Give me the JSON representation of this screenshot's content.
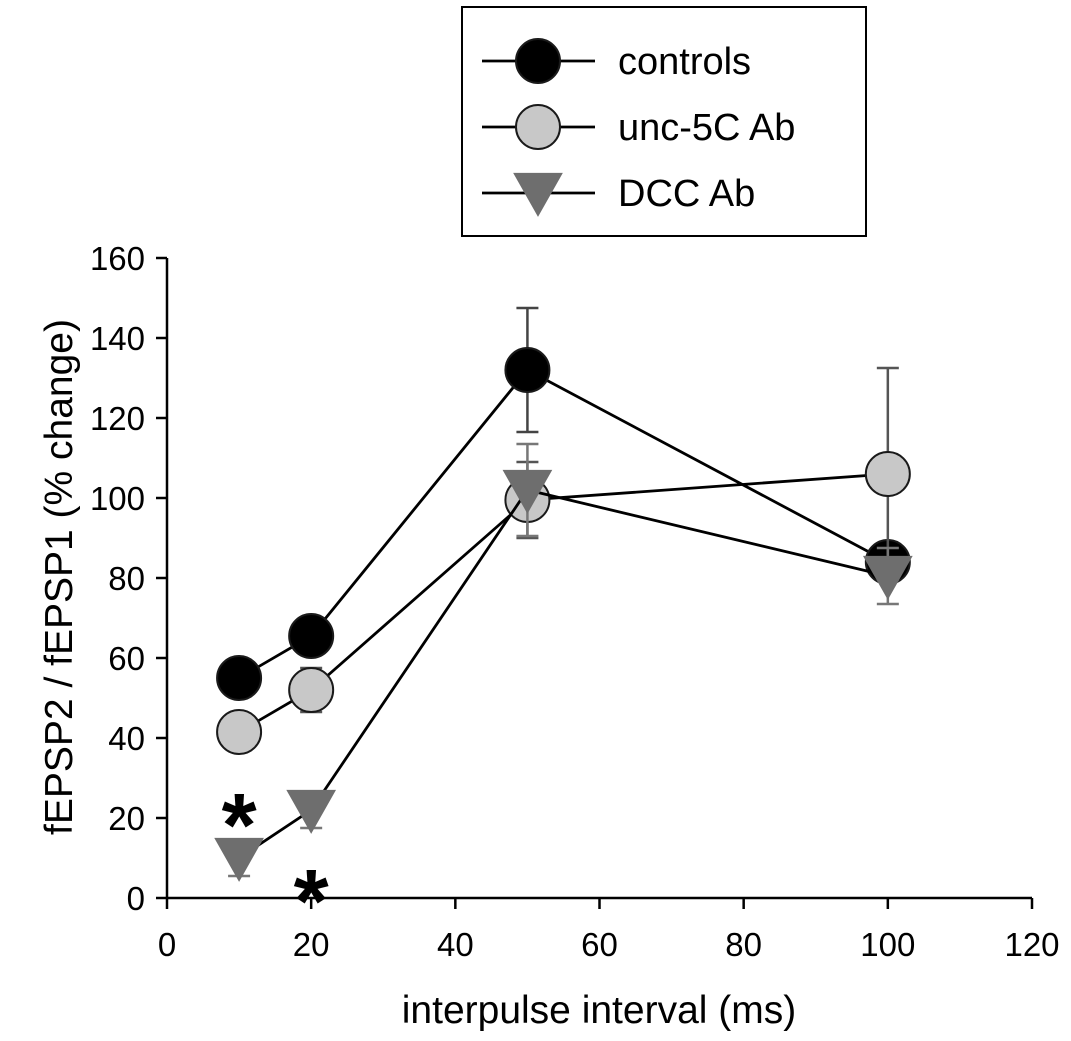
{
  "chart_data": {
    "type": "line",
    "title": "",
    "xlabel": "interpulse interval (ms)",
    "ylabel": "fEPSP2 / fEPSP1 (% change)",
    "xlim": [
      0,
      120
    ],
    "ylim": [
      0,
      160
    ],
    "xticks": [
      "0",
      "20",
      "40",
      "60",
      "80",
      "100",
      "120"
    ],
    "yticks": [
      "0",
      "20",
      "40",
      "60",
      "80",
      "100",
      "120",
      "140",
      "160"
    ],
    "grid": false,
    "legend_position": "top",
    "series": [
      {
        "name": "controls",
        "marker": "circle",
        "color": "#000000",
        "x": [
          10,
          20,
          50,
          100
        ],
        "y": [
          55,
          65.5,
          132,
          84
        ],
        "error": [
          0,
          0,
          15.5,
          0
        ]
      },
      {
        "name": "unc-5C Ab",
        "marker": "circle",
        "color": "#c8c8c8",
        "x": [
          10,
          20,
          50,
          100
        ],
        "y": [
          41.5,
          52,
          99.5,
          106
        ],
        "error": [
          0,
          5.5,
          9.5,
          26.5
        ]
      },
      {
        "name": "DCC Ab",
        "marker": "triangle-down",
        "color": "#6e6e6e",
        "x": [
          10,
          20,
          50,
          100
        ],
        "y": [
          10,
          22,
          102,
          80.5
        ],
        "error": [
          4.5,
          4.5,
          11.5,
          7
        ]
      }
    ],
    "annotations": [
      {
        "text": "*",
        "x": 10,
        "y": 23
      },
      {
        "text": "*",
        "x": 20,
        "y": 4
      }
    ]
  }
}
